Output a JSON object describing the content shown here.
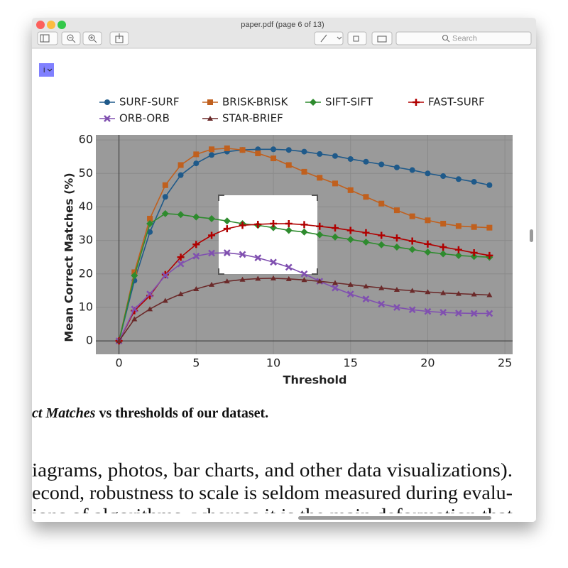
{
  "window": {
    "title": "paper.pdf (page 6 of 13)",
    "search_placeholder": "Search",
    "badge": "i"
  },
  "chart_data": {
    "type": "line",
    "xlabel": "Threshold",
    "ylabel": "Mean Correct Matches (%)",
    "x": [
      0,
      1,
      2,
      3,
      4,
      5,
      6,
      7,
      8,
      9,
      10,
      11,
      12,
      13,
      14,
      15,
      16,
      17,
      18,
      19,
      20,
      21,
      22,
      23,
      24
    ],
    "xlim": [
      -1.5,
      25.5
    ],
    "xticks": [
      0,
      5,
      10,
      15,
      20,
      25
    ],
    "ylim": [
      -4,
      61.5
    ],
    "yticks": [
      0,
      10,
      20,
      30,
      40,
      50,
      60
    ],
    "grid": true,
    "series": [
      {
        "name": "SURF-SURF",
        "color": "#1f5a8a",
        "marker": "circle",
        "values": [
          0,
          18,
          32.5,
          43,
          49.5,
          53,
          55.5,
          56.5,
          57,
          57.2,
          57.2,
          57,
          56.5,
          55.8,
          55.2,
          54.3,
          53.5,
          52.7,
          51.8,
          51,
          50,
          49.2,
          48.3,
          47.5,
          46.5
        ]
      },
      {
        "name": "BRISK-BRISK",
        "color": "#c0601e",
        "marker": "square",
        "values": [
          0,
          20.5,
          36.5,
          46.5,
          52.5,
          55.7,
          57.2,
          57.5,
          57,
          56,
          54.5,
          52.5,
          50.5,
          48.7,
          47,
          45,
          43,
          41,
          39,
          37.2,
          36,
          35,
          34.3,
          34,
          33.8
        ]
      },
      {
        "name": "SIFT-SIFT",
        "color": "#2e8b2e",
        "marker": "diamond",
        "values": [
          0,
          19.5,
          35,
          38,
          37.7,
          37,
          36.5,
          35.8,
          35,
          34.5,
          33.8,
          33,
          32.5,
          31.7,
          31,
          30.3,
          29.5,
          28.7,
          28,
          27.3,
          26.5,
          26,
          25.5,
          25.2,
          25
        ]
      },
      {
        "name": "FAST-SURF",
        "color": "#b00000",
        "marker": "plus",
        "values": [
          0,
          9,
          13.5,
          19.8,
          25,
          28.8,
          31.5,
          33.5,
          34.5,
          34.8,
          35,
          35,
          34.7,
          34.2,
          33.7,
          33,
          32.3,
          31.5,
          30.7,
          29.8,
          28.9,
          28,
          27.2,
          26.3,
          25.5
        ]
      },
      {
        "name": "ORB-ORB",
        "color": "#8050b0",
        "marker": "cross",
        "values": [
          0,
          9.5,
          14,
          19.5,
          23,
          25.3,
          26.2,
          26.3,
          25.8,
          24.8,
          23.5,
          22,
          20,
          17.8,
          15.8,
          14,
          12.5,
          11,
          10,
          9.3,
          8.8,
          8.5,
          8.3,
          8.2,
          8.2
        ]
      },
      {
        "name": "STAR-BRIEF",
        "color": "#6b2a2a",
        "marker": "triangle",
        "values": [
          0,
          6.5,
          9.5,
          12,
          14,
          15.5,
          16.8,
          17.8,
          18.3,
          18.6,
          18.7,
          18.5,
          18.2,
          17.8,
          17.3,
          16.8,
          16.3,
          15.8,
          15.3,
          15,
          14.6,
          14.3,
          14.1,
          13.9,
          13.7
        ]
      }
    ]
  },
  "caption": {
    "italic": "ct Matches",
    "bold": "vs thresholds of our dataset."
  },
  "body_lines": [
    "iagrams, photos, bar charts, and other data visualizations).",
    "econd, robustness to scale is seldom measured during evalu-",
    "ions of algorithms, whereas it is the main deformation that"
  ]
}
